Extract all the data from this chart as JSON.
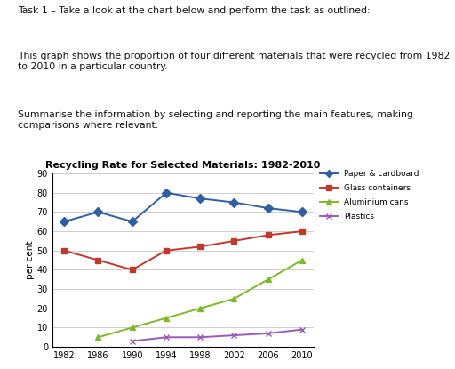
{
  "title": "Recycling Rate for Selected Materials: 1982-2010",
  "ylabel": "per cent",
  "years": [
    1982,
    1986,
    1990,
    1994,
    1998,
    2002,
    2006,
    2010
  ],
  "series": {
    "Paper & cardboard": {
      "values": [
        65,
        70,
        65,
        80,
        77,
        75,
        72,
        70
      ],
      "color": "#2E5FA3",
      "marker": "D",
      "markersize": 5
    },
    "Glass containers": {
      "values": [
        50,
        45,
        40,
        50,
        52,
        55,
        58,
        60
      ],
      "color": "#C0392B",
      "marker": "s",
      "markersize": 5
    },
    "Aluminium cans": {
      "values": [
        null,
        5,
        10,
        15,
        20,
        25,
        35,
        45
      ],
      "color": "#7DB928",
      "marker": "^",
      "markersize": 5
    },
    "Plastics": {
      "values": [
        null,
        null,
        3,
        5,
        5,
        6,
        7,
        9
      ],
      "color": "#9B59B6",
      "marker": "x",
      "markersize": 5
    }
  },
  "ylim": [
    0,
    90
  ],
  "yticks": [
    0,
    10,
    20,
    30,
    40,
    50,
    60,
    70,
    80,
    90
  ],
  "background_color": "#ffffff",
  "text_line1": "Task 1 – Take a look at the chart below and perform the task as outlined:",
  "text_line2": "This graph shows the proportion of four different materials that were recycled from 1982\nto 2010 in a particular country.",
  "text_line3": "Summarise the information by selecting and reporting the main features, making\ncomparisons where relevant."
}
